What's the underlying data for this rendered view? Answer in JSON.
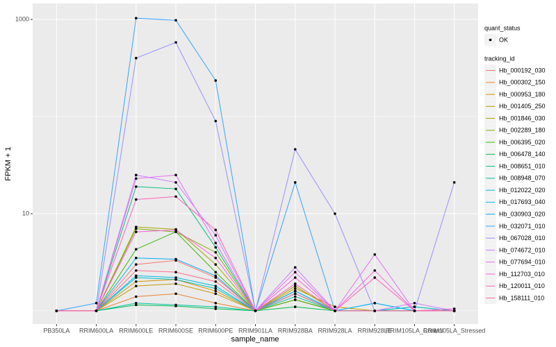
{
  "chart_data": {
    "type": "line",
    "x_label": "sample_name",
    "y_label": "FPKM + 1",
    "categories": [
      "PB350LA",
      "RRIM600LA",
      "RRIM600LE",
      "RRIM600SE",
      "RRIM600PE",
      "RRIM901LA",
      "RRIM928BA",
      "RRIM928LA",
      "RRIM928LE",
      "RRIM105LA_Control",
      "RRIM105LA_Stressed"
    ],
    "log_scale": true,
    "ylim": [
      0.73,
      1460
    ],
    "yticks": [
      10,
      1000
    ],
    "grid": true,
    "point_color": "#000000",
    "legend_position": "right",
    "shape_legend": {
      "title": "quant_status",
      "labels": [
        "OK"
      ]
    },
    "color_legend_title": "tracking_id",
    "series": [
      {
        "name": "Hb_000192_030",
        "color": "#F8766D",
        "values": [
          1,
          1,
          3.0,
          3.3,
          2.2,
          1,
          1.6,
          1,
          1,
          1,
          1
        ]
      },
      {
        "name": "Hb_000302_150",
        "color": "#EA8331",
        "values": [
          1,
          1,
          1.4,
          1.5,
          1.2,
          1,
          1.3,
          1,
          1,
          1,
          1
        ]
      },
      {
        "name": "Hb_000953_180",
        "color": "#D89000",
        "values": [
          1,
          1,
          2.0,
          2.1,
          1.6,
          1,
          1.3,
          1,
          1,
          1,
          1
        ]
      },
      {
        "name": "Hb_001405_250",
        "color": "#C09B00",
        "values": [
          1,
          1,
          1.8,
          1.9,
          1.5,
          1,
          1.7,
          1.1,
          1,
          1,
          1
        ]
      },
      {
        "name": "Hb_001846_030",
        "color": "#A3A500",
        "values": [
          1,
          1,
          7.3,
          6.9,
          3.0,
          1,
          1.8,
          1,
          1,
          1,
          1
        ]
      },
      {
        "name": "Hb_002289_180",
        "color": "#7CAE00",
        "values": [
          1,
          1,
          7,
          6.5,
          4,
          1,
          1.5,
          1,
          1,
          1,
          1
        ]
      },
      {
        "name": "Hb_006395_020",
        "color": "#39B600",
        "values": [
          1,
          1,
          4.3,
          6.5,
          2.5,
          1,
          1.3,
          1,
          1,
          1,
          1
        ]
      },
      {
        "name": "Hb_006478_140",
        "color": "#00BB4E",
        "values": [
          1,
          1,
          1.15,
          1.12,
          1.05,
          1,
          1.1,
          1,
          1,
          1,
          1
        ]
      },
      {
        "name": "Hb_008651_010",
        "color": "#00BF7D",
        "values": [
          1,
          1,
          19,
          18,
          4.5,
          1,
          1.6,
          1,
          1,
          1.1,
          1
        ]
      },
      {
        "name": "Hb_008948_070",
        "color": "#00C1A3",
        "values": [
          1,
          1,
          1.2,
          1.15,
          1.1,
          1,
          1.4,
          1,
          1,
          1,
          1
        ]
      },
      {
        "name": "Hb_012022_020",
        "color": "#00BFC4",
        "values": [
          1,
          1,
          2.2,
          2.1,
          1.7,
          1,
          1.5,
          1,
          1,
          1.1,
          1
        ]
      },
      {
        "name": "Hb_017693_040",
        "color": "#00BAE0",
        "values": [
          1,
          1,
          2.3,
          2.2,
          1.8,
          1,
          1.5,
          1,
          1.2,
          1,
          1
        ]
      },
      {
        "name": "Hb_030903_020",
        "color": "#00B0F6",
        "values": [
          1,
          1,
          3.5,
          3.4,
          2.3,
          1,
          1.6,
          1,
          1.2,
          1,
          1
        ]
      },
      {
        "name": "Hb_032071_010",
        "color": "#35A2FF",
        "values": [
          1,
          1.2,
          1030,
          980,
          235,
          1,
          21,
          1,
          1,
          1,
          1
        ]
      },
      {
        "name": "Hb_067028_010",
        "color": "#9590FF",
        "values": [
          1,
          1,
          400,
          580,
          90,
          1,
          46,
          10,
          1,
          1,
          21
        ]
      },
      {
        "name": "Hb_074672_010",
        "color": "#C77CFF",
        "values": [
          1,
          1,
          25,
          21,
          6,
          1,
          2.8,
          1,
          1,
          1.2,
          1
        ]
      },
      {
        "name": "Hb_077694_010",
        "color": "#E76BF3",
        "values": [
          1,
          1,
          23,
          25,
          5,
          1,
          2.5,
          1,
          3.8,
          1,
          1
        ]
      },
      {
        "name": "Hb_112703_010",
        "color": "#FA62DB",
        "values": [
          1,
          1,
          6.5,
          6.8,
          3.5,
          1,
          2.2,
          1,
          2.6,
          1,
          1.05
        ]
      },
      {
        "name": "Hb_120011_010",
        "color": "#FF62BC",
        "values": [
          1,
          1,
          14,
          15,
          6.8,
          1,
          1.9,
          1,
          2.2,
          1,
          1
        ]
      },
      {
        "name": "Hb_158111_010",
        "color": "#FF6C91",
        "values": [
          1,
          1,
          2.6,
          2.5,
          2.0,
          1,
          1.5,
          1,
          1,
          1,
          1
        ]
      }
    ]
  }
}
